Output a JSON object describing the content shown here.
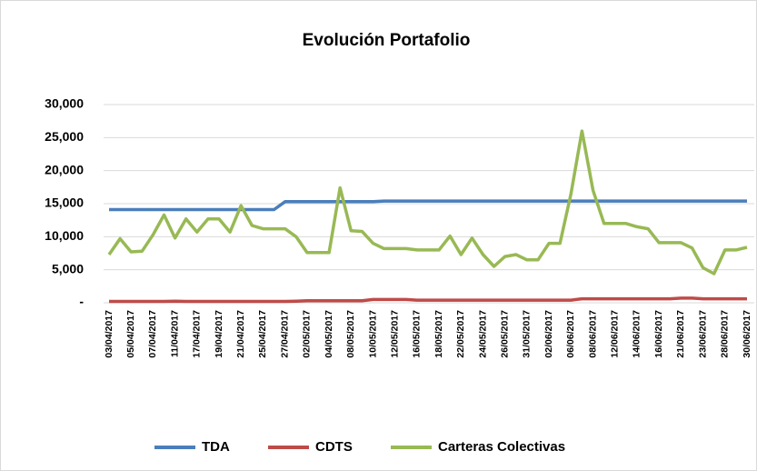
{
  "chart_data": {
    "type": "line",
    "title": "Evolución Portafolio",
    "categories": [
      "03/04/2017",
      null,
      "05/04/2017",
      null,
      "07/04/2017",
      null,
      "11/04/2017",
      null,
      "17/04/2017",
      null,
      "19/04/2017",
      null,
      "21/04/2017",
      null,
      "25/04/2017",
      null,
      "27/04/2017",
      null,
      "02/05/2017",
      null,
      "04/05/2017",
      null,
      "08/05/2017",
      null,
      "10/05/2017",
      null,
      "12/05/2017",
      null,
      "16/05/2017",
      null,
      "18/05/2017",
      null,
      "22/05/2017",
      null,
      "24/05/2017",
      null,
      "26/05/2017",
      null,
      "31/05/2017",
      null,
      "02/06/2017",
      null,
      "06/06/2017",
      null,
      "08/06/2017",
      null,
      "12/06/2017",
      null,
      "14/06/2017",
      null,
      "16/06/2017",
      null,
      "21/06/2017",
      null,
      "23/06/2017",
      null,
      "28/06/2017",
      null,
      "30/06/2017"
    ],
    "series": [
      {
        "name": "TDA",
        "color": "#4a7ebb",
        "values": [
          14100,
          14100,
          14100,
          14100,
          14100,
          14100,
          14100,
          14100,
          14100,
          14100,
          14100,
          14100,
          14100,
          14100,
          14100,
          14100,
          15300,
          15300,
          15300,
          15300,
          15300,
          15300,
          15300,
          15300,
          15300,
          15400,
          15400,
          15400,
          15400,
          15400,
          15400,
          15400,
          15400,
          15400,
          15400,
          15400,
          15400,
          15400,
          15400,
          15400,
          15400,
          15400,
          15400,
          15400,
          15400,
          15400,
          15400,
          15400,
          15400,
          15400,
          15400,
          15400,
          15400,
          15400,
          15400,
          15400,
          15400,
          15400,
          15400
        ]
      },
      {
        "name": "CDTS",
        "color": "#be4b48",
        "values": [
          200,
          200,
          200,
          200,
          200,
          200,
          250,
          200,
          200,
          200,
          200,
          200,
          200,
          200,
          200,
          200,
          200,
          250,
          300,
          300,
          300,
          300,
          300,
          300,
          500,
          500,
          500,
          500,
          400,
          400,
          400,
          400,
          400,
          400,
          400,
          400,
          400,
          400,
          400,
          400,
          400,
          400,
          400,
          600,
          600,
          600,
          600,
          600,
          600,
          600,
          600,
          600,
          700,
          700,
          600,
          600,
          600,
          600,
          600
        ]
      },
      {
        "name": "Carteras Colectivas",
        "color": "#98b954",
        "values": [
          7300,
          9700,
          7700,
          7800,
          10300,
          13300,
          9800,
          12700,
          10700,
          12700,
          12700,
          10700,
          14700,
          11700,
          11200,
          11200,
          11200,
          10000,
          7600,
          7600,
          7600,
          17400,
          10900,
          10800,
          9000,
          8200,
          8200,
          8200,
          8000,
          8000,
          8000,
          10100,
          7300,
          9800,
          7300,
          5500,
          7000,
          7300,
          6500,
          6500,
          9000,
          9000,
          16500,
          26000,
          17000,
          12000,
          12000,
          12000,
          11500,
          11200,
          9100,
          9100,
          9100,
          8300,
          5300,
          4400,
          8000,
          8000,
          8400
        ]
      }
    ],
    "ylim": [
      0,
      30000
    ],
    "yticks": [
      {
        "value": 0,
        "label": "-"
      },
      {
        "value": 5000,
        "label": "5,000"
      },
      {
        "value": 10000,
        "label": "10,000"
      },
      {
        "value": 15000,
        "label": "15,000"
      },
      {
        "value": 20000,
        "label": "20,000"
      },
      {
        "value": 25000,
        "label": "25,000"
      },
      {
        "value": 30000,
        "label": "30,000"
      }
    ],
    "grid": true,
    "legend": "bottom"
  }
}
